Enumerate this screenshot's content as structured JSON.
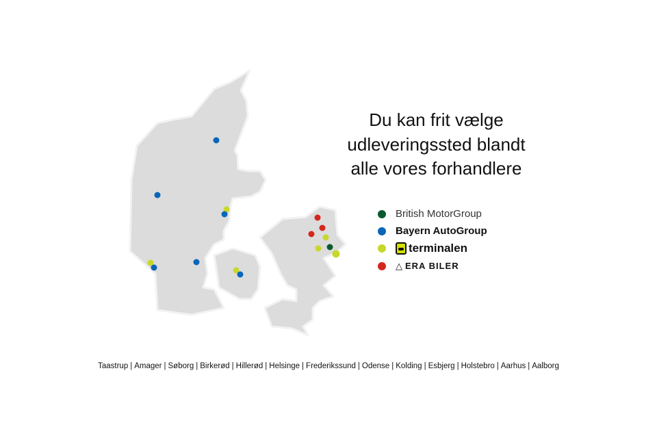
{
  "headline": [
    "Du kan frit vælge",
    "udleveringssted blandt",
    "alle vores forhandlere"
  ],
  "legend": [
    {
      "label": "British MotorGroup",
      "color": "#0b5a2e"
    },
    {
      "label": "Bayern AutoGroup",
      "color": "#0a66b8"
    },
    {
      "label": "terminalen",
      "color": "#c8d82a"
    },
    {
      "label": "ERA BILER",
      "color": "#d4261c"
    }
  ],
  "cities": [
    "Taastrup",
    "Amager",
    "Søborg",
    "Birkerød",
    "Hillerød",
    "Helsinge",
    "Frederikssund",
    "Odense",
    "Kolding",
    "Esbjerg",
    "Holstebro",
    "Aarhus",
    "Aalborg"
  ],
  "separator": "|",
  "colors": {
    "land": "#dcdcdc",
    "outline": "#f4f4f4"
  }
}
